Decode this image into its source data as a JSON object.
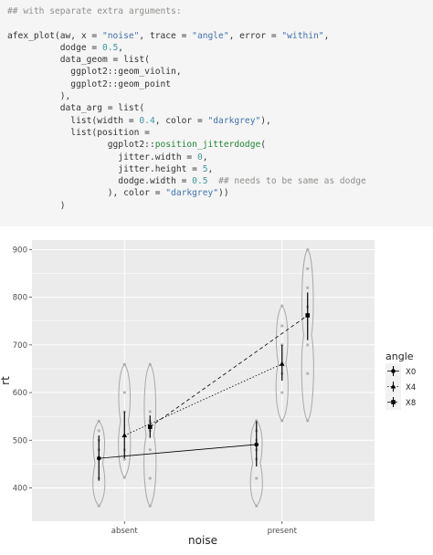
{
  "code": {
    "lines": [
      [
        [
          "## with separate extra arguments:",
          "cmt"
        ]
      ],
      [
        [
          "",
          ""
        ]
      ],
      [
        [
          "afex_plot(aw, x = ",
          ""
        ],
        [
          "\"noise\"",
          "str"
        ],
        [
          ", trace = ",
          ""
        ],
        [
          "\"angle\"",
          "str"
        ],
        [
          ", error = ",
          ""
        ],
        [
          "\"within\"",
          "str"
        ],
        [
          ",",
          ""
        ]
      ],
      [
        [
          "          dodge = ",
          ""
        ],
        [
          "0.5",
          "num"
        ],
        [
          ",",
          ""
        ]
      ],
      [
        [
          "          data_geom = list(",
          ""
        ]
      ],
      [
        [
          "            ggplot2::geom_violin,",
          ""
        ]
      ],
      [
        [
          "            ggplot2::geom_point",
          ""
        ]
      ],
      [
        [
          "          ),",
          ""
        ]
      ],
      [
        [
          "          data_arg = list(",
          ""
        ]
      ],
      [
        [
          "            list(width = ",
          ""
        ],
        [
          "0.4",
          "num"
        ],
        [
          ", color = ",
          ""
        ],
        [
          "\"darkgrey\"",
          "str"
        ],
        [
          "),",
          ""
        ]
      ],
      [
        [
          "            list(position =",
          ""
        ]
      ],
      [
        [
          "                   ggplot2::",
          ""
        ],
        [
          "position_jitterdodge",
          "fn"
        ],
        [
          "(",
          ""
        ]
      ],
      [
        [
          "                     jitter.width = ",
          ""
        ],
        [
          "0",
          "num"
        ],
        [
          ",",
          ""
        ]
      ],
      [
        [
          "                     jitter.height = ",
          ""
        ],
        [
          "5",
          "num"
        ],
        [
          ",",
          ""
        ]
      ],
      [
        [
          "                     dodge.width = ",
          ""
        ],
        [
          "0.5",
          "num"
        ],
        [
          "  ",
          ""
        ],
        [
          "## needs to be same as dodge",
          "cmt"
        ]
      ],
      [
        [
          "                   ), color = ",
          ""
        ],
        [
          "\"darkgrey\"",
          "str"
        ],
        [
          "))",
          ""
        ]
      ],
      [
        [
          "          )",
          ""
        ]
      ]
    ]
  },
  "colors": {
    "panel_bg": "#ebebeb",
    "grid_major": "#ffffff",
    "violin_outline": "#a9a9a9",
    "points": "#a9a9a9",
    "mean_line": "#000000",
    "legend_key_bg": "#f2f2f2"
  },
  "chart_data": {
    "type": "line",
    "xlabel": "noise",
    "ylabel": "rt",
    "categories": [
      "absent",
      "present"
    ],
    "ylim": [
      330,
      920
    ],
    "yticks": [
      400,
      500,
      600,
      700,
      800,
      900
    ],
    "grid": true,
    "legend": {
      "title": "angle",
      "position": "right"
    },
    "series": [
      {
        "name": "X0",
        "shape": "circle",
        "dash": "solid",
        "values": [
          462,
          491
        ],
        "ci": [
          [
            415,
            510
          ],
          [
            445,
            540
          ]
        ],
        "violin": [
          [
            362,
            540
          ],
          [
            362,
            541
          ]
        ]
      },
      {
        "name": "X4",
        "shape": "triangle",
        "dash": "dotted",
        "values": [
          510,
          660
        ],
        "ci": [
          [
            462,
            560
          ],
          [
            625,
            700
          ]
        ],
        "violin": [
          [
            422,
            659
          ],
          [
            541,
            782
          ]
        ]
      },
      {
        "name": "X8",
        "shape": "square",
        "dash": "dashed",
        "values": [
          528,
          762
        ],
        "ci": [
          [
            505,
            552
          ],
          [
            710,
            810
          ]
        ],
        "violin": [
          [
            362,
            659
          ],
          [
            541,
            900
          ]
        ]
      }
    ],
    "data_points": {
      "absent": [
        [
          362,
          420,
          480,
          500,
          520,
          540
        ],
        [
          422,
          460,
          480,
          560,
          600,
          659
        ],
        [
          362,
          420,
          480,
          520,
          540,
          560,
          659
        ]
      ],
      "present": [
        [
          362,
          420,
          460,
          480,
          500,
          520,
          541
        ],
        [
          541,
          600,
          640,
          660,
          700,
          740,
          782
        ],
        [
          541,
          640,
          700,
          760,
          780,
          820,
          860,
          900
        ]
      ]
    }
  }
}
